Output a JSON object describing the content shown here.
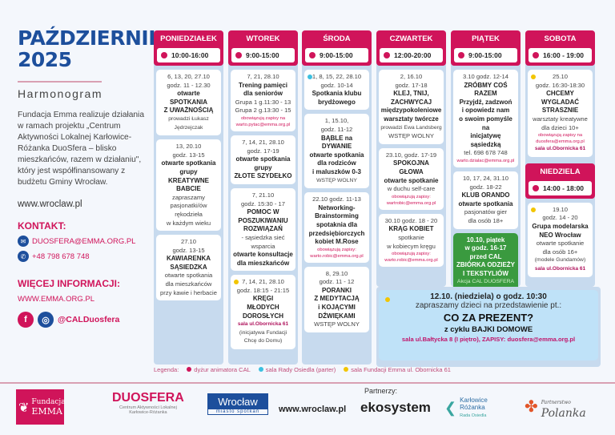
{
  "header": {
    "title_line1": "PAŹDZIERNIK",
    "title_line2": "2025",
    "subtitle": "Harmonogram",
    "description": "Fundacja Emma realizuje działania w ramach projektu „Centrum Aktywności Lokalnej Karłowice-Różanka DuoSfera – blisko mieszkańców, razem w działaniu\", który jest współfinansowany z budżetu Gminy Wrocław.",
    "website": "www.wroclaw.pl"
  },
  "contact": {
    "heading": "KONTAKT:",
    "email": "DUOSFERA@EMMA.ORG.PL",
    "phone": "+48 798 678 748",
    "email_icon": "mail-icon",
    "phone_icon": "phone-icon"
  },
  "more": {
    "heading": "WIĘCEJ INFORMACJI:",
    "link": "WWW.EMMA.ORG.PL",
    "social_handle": "@CALDuosfera",
    "facebook": "f",
    "instagram": "◎"
  },
  "colors": {
    "accent": "#d0145a",
    "navy": "#1d4f9c",
    "column_bg": "#c7daee",
    "yellow_dot": "#f2c500",
    "cyan_dot": "#3cc0e0",
    "green": "#3a9a3f"
  },
  "days": [
    {
      "name": "PONIEDZIAŁEK",
      "hours": "10:00-16:00",
      "events": [
        {
          "lines": [
            {
              "t": "6, 13, 20, 27.10",
              "k": "r"
            },
            {
              "t": "godz. 11 - 12.30",
              "k": "r"
            },
            {
              "t": "otwarte",
              "k": "b"
            },
            {
              "t": "SPOTKANIA",
              "k": "b"
            },
            {
              "t": "Z UWAŻNOŚCIĄ",
              "k": "b"
            },
            {
              "t": "prowadzi Łukasz",
              "k": "c"
            },
            {
              "t": "Jędrzejczak",
              "k": "c"
            }
          ]
        },
        {
          "lines": [
            {
              "t": "13, 20.10",
              "k": "r"
            },
            {
              "t": "godz. 13-15",
              "k": "r"
            },
            {
              "t": "otwarte spotkania",
              "k": "b"
            },
            {
              "t": "grupy",
              "k": "b"
            },
            {
              "t": "KREATYWNE BABCIE",
              "k": "b"
            },
            {
              "t": "zapraszamy",
              "k": "r"
            },
            {
              "t": "pasjonatki/ów",
              "k": "r"
            },
            {
              "t": "rękodzieła",
              "k": "r"
            },
            {
              "t": "w każdym wieku",
              "k": "r"
            }
          ]
        },
        {
          "lines": [
            {
              "t": "27.10",
              "k": "r"
            },
            {
              "t": "godz. 13-15",
              "k": "r"
            },
            {
              "t": "KAWIARENKA",
              "k": "b"
            },
            {
              "t": "SĄSIEDZKA",
              "k": "b"
            },
            {
              "t": "otwarte spotkania",
              "k": "r"
            },
            {
              "t": "dla mieszkańców",
              "k": "r"
            },
            {
              "t": "przy kawie i herbacie",
              "k": "r"
            }
          ]
        }
      ]
    },
    {
      "name": "WTOREK",
      "hours": "9:00-15:00",
      "events": [
        {
          "lines": [
            {
              "t": "7, 21, 28.10",
              "k": "r"
            },
            {
              "t": "Trening pamięci",
              "k": "b"
            },
            {
              "t": "dla seniorów",
              "k": "b"
            },
            {
              "t": "Grupa 1 g.11:30 - 13",
              "k": "r"
            },
            {
              "t": "Grupa 2 g.13:30 - 15",
              "k": "r"
            },
            {
              "t": "obowiązują zapisy na",
              "k": "n"
            },
            {
              "t": "warto.pytac@emma.org.pl",
              "k": "n"
            }
          ]
        },
        {
          "lines": [
            {
              "t": "7, 14, 21, 28.10",
              "k": "r"
            },
            {
              "t": "godz. 17-19",
              "k": "r"
            },
            {
              "t": "otwarte spotkania",
              "k": "b"
            },
            {
              "t": "grupy",
              "k": "b"
            },
            {
              "t": "ZŁOTE SZYDEŁKO",
              "k": "b"
            }
          ]
        },
        {
          "lines": [
            {
              "t": "7, 21.10",
              "k": "r"
            },
            {
              "t": "godz. 15:30 - 17",
              "k": "r"
            },
            {
              "t": "POMOC W",
              "k": "b"
            },
            {
              "t": "POSZUKIWANIU",
              "k": "b"
            },
            {
              "t": "ROZWIĄZAŃ",
              "k": "b"
            },
            {
              "t": "- sąsiedzka sieć",
              "k": "r"
            },
            {
              "t": "wsparcia",
              "k": "r"
            },
            {
              "t": "otwarte konsultacje",
              "k": "b"
            },
            {
              "t": "dla mieszkańców",
              "k": "b"
            }
          ]
        },
        {
          "dot": "#f2c500",
          "lines": [
            {
              "t": "7, 14, 21, 28.10",
              "k": "r"
            },
            {
              "t": "godz. 18:15 - 21:15",
              "k": "r"
            },
            {
              "t": "KRĘGI",
              "k": "b"
            },
            {
              "t": "MŁODYCH",
              "k": "b"
            },
            {
              "t": "DOROSŁYCH",
              "k": "b"
            },
            {
              "t": "sala ul.Obornicka 61",
              "k": "s"
            },
            {
              "t": "(inicjatywa Fundacji",
              "k": "c"
            },
            {
              "t": "Chcę do Domu)",
              "k": "c"
            }
          ]
        }
      ]
    },
    {
      "name": "ŚRODA",
      "hours": "9:00-15:00",
      "events": [
        {
          "dot": "#3cc0e0",
          "lines": [
            {
              "t": "1, 8, 15, 22, 28.10",
              "k": "r"
            },
            {
              "t": "godz. 10-14",
              "k": "r"
            },
            {
              "t": "Spotkania klubu",
              "k": "b"
            },
            {
              "t": "brydżowego",
              "k": "b"
            }
          ]
        },
        {
          "lines": [
            {
              "t": "1, 15.10,",
              "k": "r"
            },
            {
              "t": "godz. 11-12",
              "k": "r"
            },
            {
              "t": "BĄBLE na DYWANIE",
              "k": "b"
            },
            {
              "t": "otwarte spotkania",
              "k": "b"
            },
            {
              "t": "dla rodziców",
              "k": "b"
            },
            {
              "t": "i maluszków 0-3",
              "k": "b"
            },
            {
              "t": "WSTĘP WOLNY",
              "k": "c"
            }
          ]
        },
        {
          "lines": [
            {
              "t": "22.10 godz. 11-13",
              "k": "r"
            },
            {
              "t": "Networking-",
              "k": "b"
            },
            {
              "t": "Brainstorming",
              "k": "b"
            },
            {
              "t": "spotaknia dla",
              "k": "b"
            },
            {
              "t": "przedsiębiorczych",
              "k": "b"
            },
            {
              "t": "kobiet M.Rose",
              "k": "b"
            },
            {
              "t": "obowiązują zapisy:",
              "k": "n"
            },
            {
              "t": "warto.robic@emma.org.pl",
              "k": "n"
            }
          ]
        },
        {
          "lines": [
            {
              "t": "8, 29.10",
              "k": "r"
            },
            {
              "t": "godz. 11 - 12",
              "k": "r"
            },
            {
              "t": "PORANKI",
              "k": "b"
            },
            {
              "t": "Z MEDYTACJĄ",
              "k": "b"
            },
            {
              "t": "i KOJĄCYMI",
              "k": "b"
            },
            {
              "t": "DŹWIĘKAMI",
              "k": "b"
            },
            {
              "t": "WSTĘP WOLNY",
              "k": "r"
            }
          ]
        }
      ]
    },
    {
      "name": "CZWARTEK",
      "hours": "12:00-20:00",
      "events": [
        {
          "lines": [
            {
              "t": "2, 16.10",
              "k": "r"
            },
            {
              "t": "godz. 17-18",
              "k": "r"
            },
            {
              "t": "KLEJ, TNIJ,",
              "k": "b"
            },
            {
              "t": "ZACHWYCAJ",
              "k": "b"
            },
            {
              "t": "międzypokoleniowe",
              "k": "b"
            },
            {
              "t": "warsztaty twórcze",
              "k": "b"
            },
            {
              "t": "prowadzi Ewa Landsberg",
              "k": "c"
            },
            {
              "t": "WSTĘP WOLNY",
              "k": "r"
            }
          ]
        },
        {
          "lines": [
            {
              "t": "23.10, godz. 17-19",
              "k": "r"
            },
            {
              "t": "SPOKOJNA GŁOWA",
              "k": "b"
            },
            {
              "t": "otwarte spotkanie",
              "k": "b"
            },
            {
              "t": "w duchu self-care",
              "k": "r"
            },
            {
              "t": "obowiązują zapisy:",
              "k": "n"
            },
            {
              "t": "wartrobic@emma.org.pl",
              "k": "n"
            }
          ]
        },
        {
          "lines": [
            {
              "t": "30.10 godz. 18 - 20",
              "k": "r"
            },
            {
              "t": "KRĄG KOBIET",
              "k": "b"
            },
            {
              "t": "spotkanie",
              "k": "r"
            },
            {
              "t": "w kobiecym kręgu",
              "k": "r"
            },
            {
              "t": "obowiązują zapisy:",
              "k": "n"
            },
            {
              "t": "warto.robic@emma.org.pl",
              "k": "n"
            }
          ]
        }
      ]
    },
    {
      "name": "PIĄTEK",
      "hours": "9:00-15:00",
      "events": [
        {
          "lines": [
            {
              "t": "3.10 godz. 12-14",
              "k": "r"
            },
            {
              "t": "ZRÓBMY COŚ RAZEM",
              "k": "b"
            },
            {
              "t": "Przyjdź, zadzwoń",
              "k": "b"
            },
            {
              "t": "i opowiedz nam",
              "k": "b"
            },
            {
              "t": "o swoim pomyśle na",
              "k": "b"
            },
            {
              "t": "inicjatywę sąsiedzką",
              "k": "b"
            },
            {
              "t": "tel. 698 678 748",
              "k": "r"
            },
            {
              "t": "warto.dzialac@emma.org.pl",
              "k": "n"
            }
          ]
        },
        {
          "lines": [
            {
              "t": "10, 17, 24, 31.10",
              "k": "r"
            },
            {
              "t": "godz. 18-22",
              "k": "r"
            },
            {
              "t": "KLUB ORANDO",
              "k": "b"
            },
            {
              "t": "otwarte spotkania",
              "k": "b"
            },
            {
              "t": "pasjonatów gier",
              "k": "r"
            },
            {
              "t": "dla osób 18+",
              "k": "r"
            }
          ]
        },
        {
          "variant": "green",
          "lines": [
            {
              "t": "10.10, piątek",
              "k": "b"
            },
            {
              "t": "w godz. 16-17",
              "k": "b"
            },
            {
              "t": "przed CAL",
              "k": "b"
            },
            {
              "t": "ZBIÓRKA ODZIEŻY",
              "k": "b"
            },
            {
              "t": "I TEKSTYLIÓW",
              "k": "b"
            },
            {
              "t": "Akcja CAL DUOSFERA",
              "k": "c"
            },
            {
              "t": "i SZOT-EKOSYSTEM",
              "k": "c"
            }
          ]
        }
      ]
    },
    {
      "name": "SOBOTA",
      "hours": "16:00 - 19:00",
      "events": [
        {
          "dot": "#f2c500",
          "lines": [
            {
              "t": "25.10",
              "k": "r"
            },
            {
              "t": "godz. 16:30-18:30",
              "k": "r"
            },
            {
              "t": "CHCEMY",
              "k": "b"
            },
            {
              "t": "WYGLADAĆ",
              "k": "b"
            },
            {
              "t": "STRASZNIE",
              "k": "b"
            },
            {
              "t": "warsztaty kreatywne",
              "k": "r"
            },
            {
              "t": "dla dzieci 10+",
              "k": "r"
            },
            {
              "t": "obowiązują zapisy na",
              "k": "n"
            },
            {
              "t": "duosfera@emma.org.pl",
              "k": "n"
            },
            {
              "t": "sala ul.Obornicka 61",
              "k": "s"
            }
          ]
        }
      ]
    }
  ],
  "sunday": {
    "name": "NIEDZIELA",
    "hours": "14:00 - 18:00",
    "event": {
      "dot": "#f2c500",
      "lines": [
        {
          "t": "19.10",
          "k": "r"
        },
        {
          "t": "godz. 14 - 20",
          "k": "r"
        },
        {
          "t": "Grupa modelarska",
          "k": "b"
        },
        {
          "t": "NEO Wrocław",
          "k": "b"
        },
        {
          "t": "otwarte spotkanie",
          "k": "r"
        },
        {
          "t": "dla osób 16+",
          "k": "r"
        },
        {
          "t": "(modele Gundamów)",
          "k": "c"
        },
        {
          "t": "sala ul.Obornicka 61",
          "k": "s"
        }
      ]
    }
  },
  "special": {
    "line1": "12.10. (niedziela) o godz. 10:30",
    "line2": "zapraszamy dzieci na przedstawienie pt.:",
    "title": "CO ZA PREZENT?",
    "series": "z cyklu BAJKI DOMOWE",
    "info": "sala ul.Bałtycka 8 (I piętro), ZAPISY: duosfera@emma.org.pl"
  },
  "legend": {
    "label": "Legenda:",
    "items": [
      {
        "text": "dyżur animatora CAL",
        "color": "#d0145a"
      },
      {
        "text": "sala Rady Osiedla (parter)",
        "color": "#3cc0e0"
      },
      {
        "text": "sala Fundacji Emma ul. Obornicka 61",
        "color": "#f2c500"
      }
    ]
  },
  "footer": {
    "emma_line1": "Fundacja",
    "emma_line2": "EMMA",
    "duosfera": "DUOSFERA",
    "duosfera_sub1": "Centrum Aktywności Lokalnej",
    "duosfera_sub2": "Karłowice-Różanka",
    "wroclaw": "Wrocław",
    "wroclaw_sub": "miasto spotkań",
    "website": "www.wroclaw.pl",
    "partners_label": "Partnerzy:",
    "ekosystem": "ekosystem",
    "karlowice1": "Karłowice",
    "karlowice2": "Różanka",
    "karlowice3": "Rada Osiedla",
    "polanka_small": "Partnerstwo",
    "polanka": "Polanka"
  }
}
